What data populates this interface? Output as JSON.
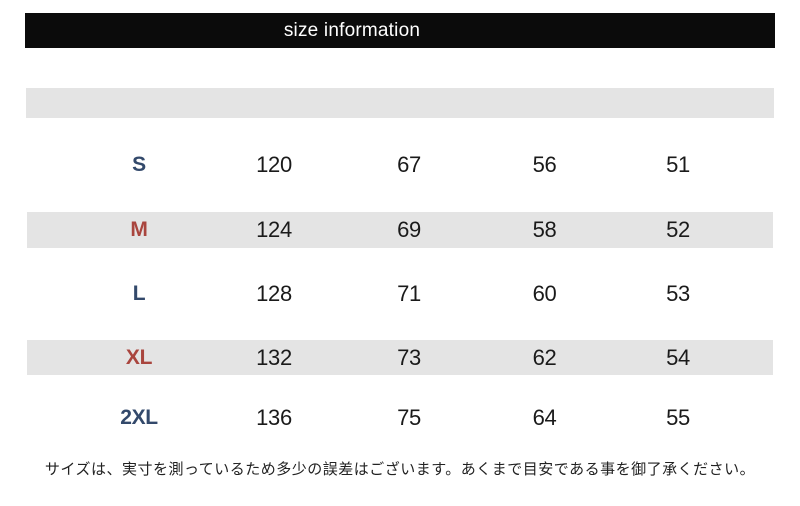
{
  "title_bar": {
    "label": "size information"
  },
  "size_table": {
    "rows": [
      {
        "size": "S",
        "values": [
          "120",
          "67",
          "56",
          "51"
        ]
      },
      {
        "size": "M",
        "values": [
          "124",
          "69",
          "58",
          "52"
        ]
      },
      {
        "size": "L",
        "values": [
          "128",
          "71",
          "60",
          "53"
        ]
      },
      {
        "size": "XL",
        "values": [
          "132",
          "73",
          "62",
          "54"
        ]
      },
      {
        "size": "2XL",
        "values": [
          "136",
          "75",
          "64",
          "55"
        ]
      }
    ]
  },
  "footer_note": "サイズは、実寸を測っているため多少の誤差はございます。あくまで目安である事を御了承ください。",
  "colors": {
    "title_bar_bg": "#0b0b0b",
    "title_text": "#ffffff",
    "row_band_gray": "#e4e4e4",
    "size_label_blue": "#33496b",
    "size_label_red": "#a9453e",
    "value_text": "#1a1a1a",
    "note_text": "#222222"
  }
}
